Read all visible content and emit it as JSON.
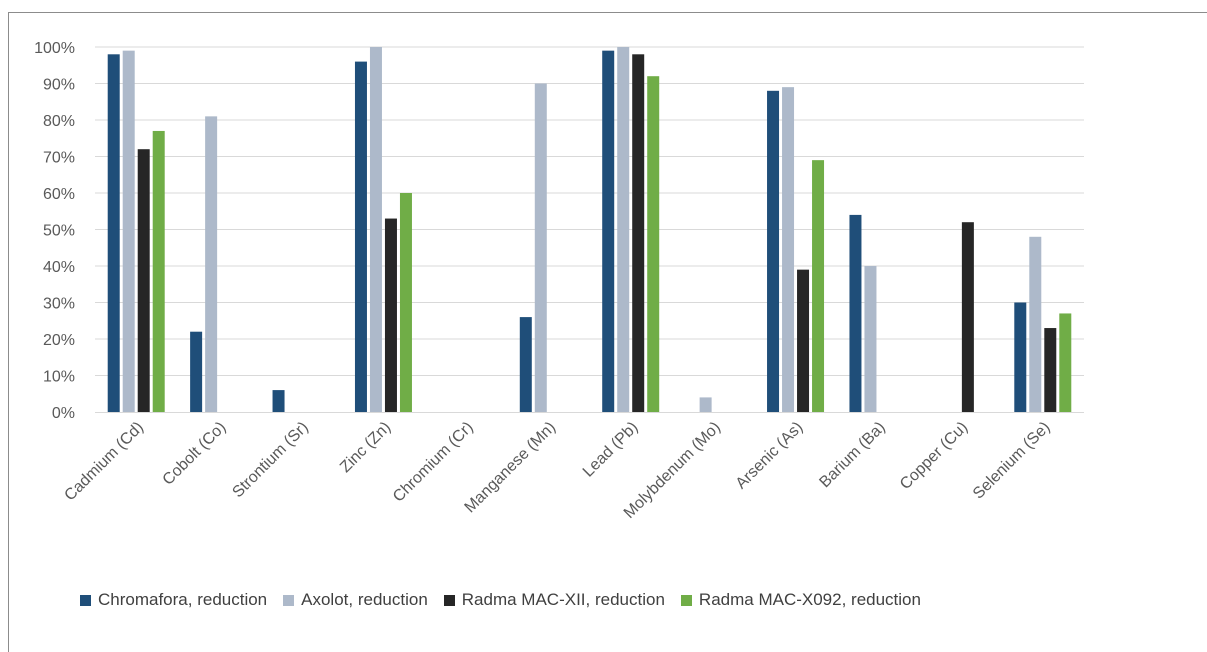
{
  "chart_data": {
    "type": "bar",
    "categories": [
      "Cadmium (Cd)",
      "Cobolt (Co)",
      "Strontium (Sr)",
      "Zinc (Zn)",
      "Chromium (Cr)",
      "Manganese (Mn)",
      "Lead (Pb)",
      "Molybdenum (Mo)",
      "Arsenic (As)",
      "Barium (Ba)",
      "Copper (Cu)",
      "Selenium (Se)"
    ],
    "series": [
      {
        "name": "Chromafora, reduction",
        "color": "#1f4e79",
        "values": [
          98,
          22,
          6,
          96,
          0,
          26,
          99,
          0,
          88,
          54,
          0,
          30
        ]
      },
      {
        "name": "Axolot, reduction",
        "color": "#adb9ca",
        "values": [
          99,
          81,
          0,
          100,
          0,
          90,
          100,
          4,
          89,
          40,
          0,
          48
        ]
      },
      {
        "name": "Radma MAC-XII, reduction",
        "color": "#262626",
        "values": [
          72,
          0,
          0,
          53,
          0,
          0,
          98,
          0,
          39,
          0,
          52,
          23
        ]
      },
      {
        "name": "Radma MAC-X092, reduction",
        "color": "#70ad47",
        "values": [
          77,
          0,
          0,
          60,
          0,
          0,
          92,
          0,
          69,
          0,
          0,
          27
        ]
      }
    ],
    "yticks": [
      "0%",
      "10%",
      "20%",
      "30%",
      "40%",
      "50%",
      "60%",
      "70%",
      "80%",
      "90%",
      "100%"
    ],
    "ylim": [
      0,
      100
    ],
    "grid": true,
    "legend_position": "bottom",
    "title": "",
    "xlabel": "",
    "ylabel": ""
  }
}
